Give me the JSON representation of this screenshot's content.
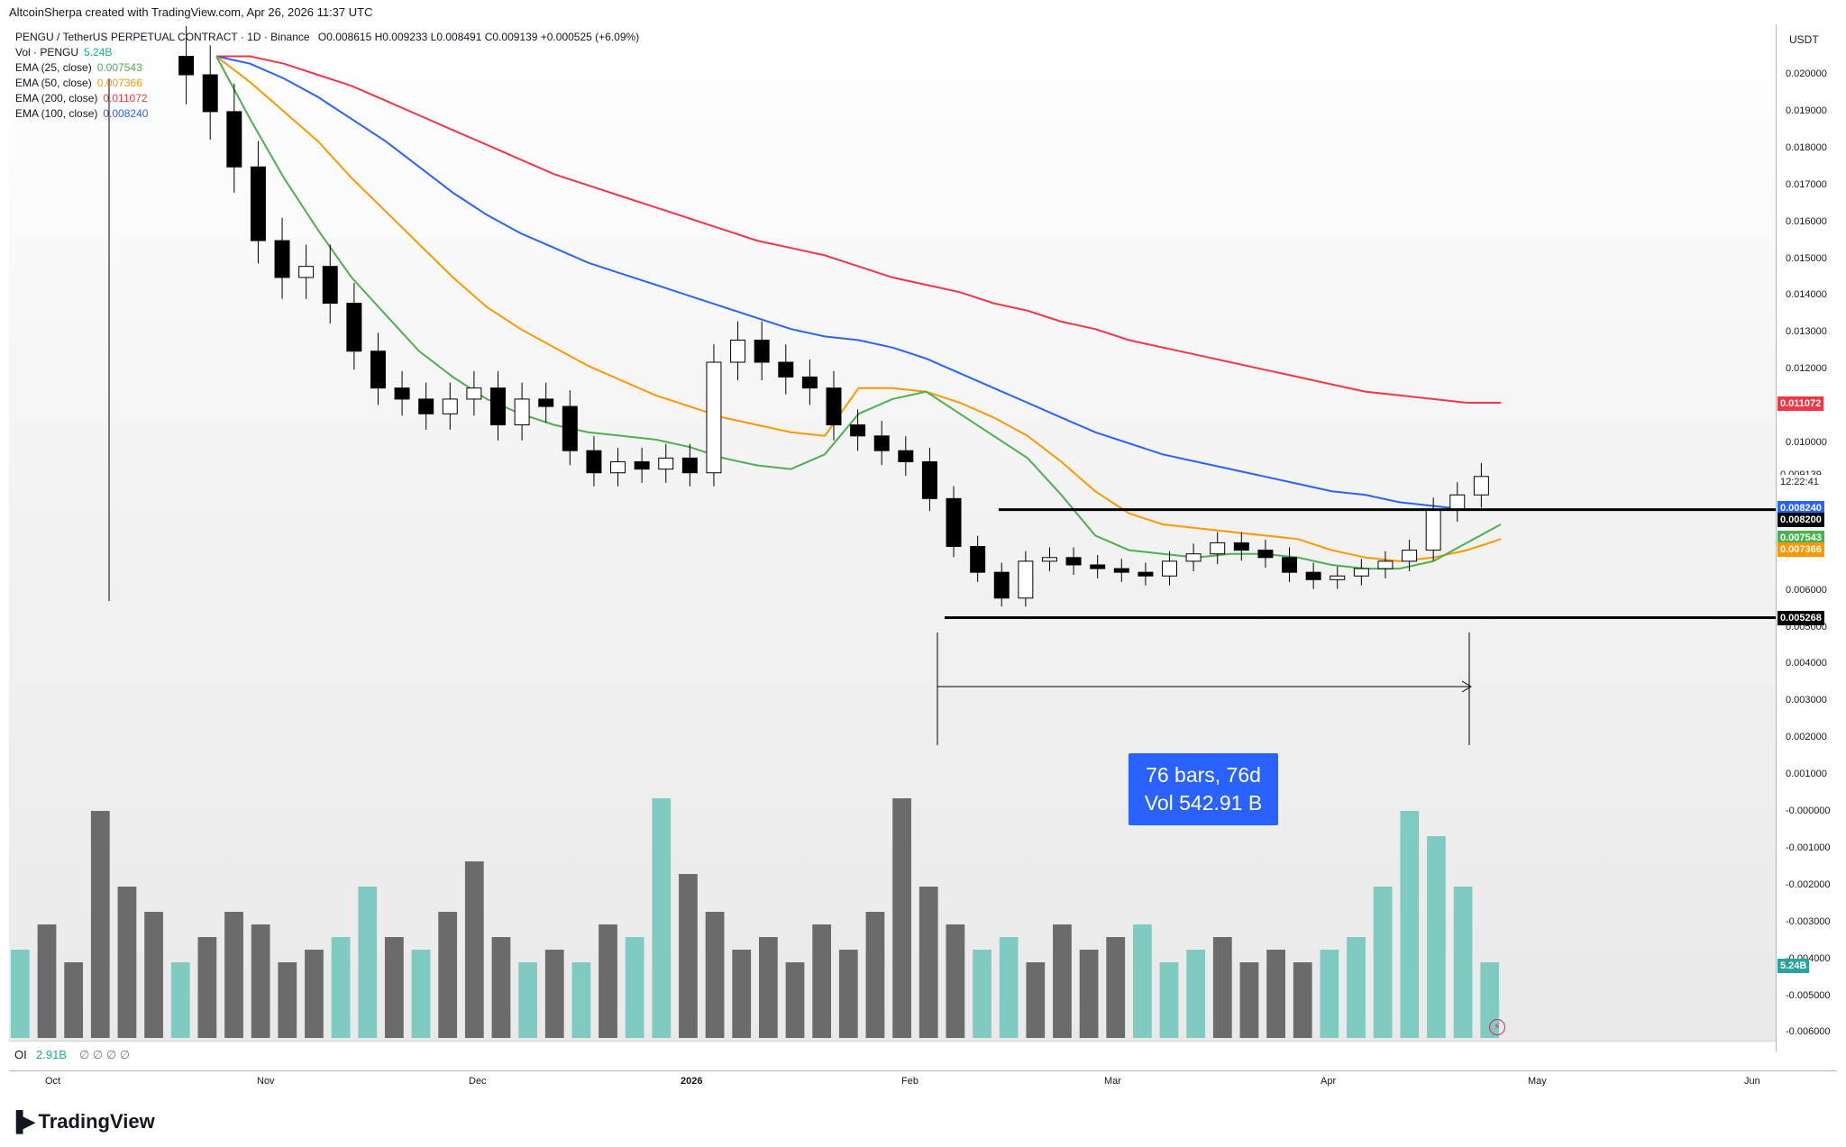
{
  "header": {
    "text": "AltcoinSherpa created with TradingView.com, Apr 26, 2026 11:37 UTC"
  },
  "legend": {
    "title": "PENGU / TetherUS PERPETUAL CONTRACT · 1D · Binance",
    "ohlc": "O0.008615  H0.009233  L0.008491  C0.009139  +0.000525 (+6.09%)",
    "rows": [
      {
        "label": "Vol · PENGU",
        "value": "5.24B",
        "color": "#26a69a"
      },
      {
        "label": "EMA (25, close)",
        "value": "0.007543",
        "color": "#4caf50"
      },
      {
        "label": "EMA (50, close)",
        "value": "0.007366",
        "color": "#ff9800"
      },
      {
        "label": "EMA (200, close)",
        "value": "0.011072",
        "color": "#f23645"
      },
      {
        "label": "EMA (100, close)",
        "value": "0.008240",
        "color": "#2962ff"
      }
    ]
  },
  "price_axis": {
    "unit": "USDT",
    "ticks": [
      "0.020000",
      "0.019000",
      "0.018000",
      "0.017000",
      "0.016000",
      "0.015000",
      "0.014000",
      "0.013000",
      "0.012000",
      "0.010000",
      "0.006000",
      "0.005000",
      "0.004000",
      "0.003000",
      "0.002000",
      "0.001000",
      "-0.000000",
      "-0.001000",
      "-0.002000",
      "-0.003000",
      "-0.004000",
      "-0.005000",
      "-0.006000"
    ],
    "badges": [
      {
        "text": "0.011072",
        "color": "#f23645"
      },
      {
        "text": "0.009139",
        "color": "#ffffff"
      },
      {
        "text": "12:22:41",
        "color": "#ffffff"
      },
      {
        "text": "0.008240",
        "color": "#2962ff"
      },
      {
        "text": "0.008200",
        "color": "#000000"
      },
      {
        "text": "0.007543",
        "color": "#4caf50"
      },
      {
        "text": "0.007366",
        "color": "#ff9800"
      },
      {
        "text": "0.005268",
        "color": "#000000"
      },
      {
        "text": "5.24B",
        "color": "#26a69a"
      }
    ]
  },
  "time_axis": {
    "labels": [
      "Oct",
      "Nov",
      "Dec",
      "2026",
      "Feb",
      "Mar",
      "Apr",
      "May",
      "Jun"
    ]
  },
  "oi": {
    "label": "OI",
    "value": "2.91B",
    "rest": "∅ ∅ ∅ ∅"
  },
  "measure": {
    "line1": "76 bars, 76d",
    "line2": "Vol 542.91 B"
  },
  "brand": {
    "name": "TradingView"
  },
  "chart_data": {
    "type": "candlestick",
    "symbol": "PENGU / TetherUS PERPETUAL CONTRACT",
    "timeframe": "1D",
    "x_range": [
      "Oct",
      "Jun"
    ],
    "y_unit": "USDT",
    "ylim": [
      -0.006,
      0.0205
    ],
    "horizontal_levels": [
      0.0082,
      0.005268
    ],
    "ema": {
      "ema25": [
        0.0205,
        0.0188,
        0.0172,
        0.0158,
        0.0145,
        0.0135,
        0.0125,
        0.0118,
        0.0112,
        0.0108,
        0.0105,
        0.0103,
        0.0102,
        0.0101,
        0.0099,
        0.0096,
        0.0094,
        0.0093,
        0.0097,
        0.0108,
        0.0112,
        0.0114,
        0.0108,
        0.0102,
        0.0096,
        0.0086,
        0.0075,
        0.0071,
        0.007,
        0.0069,
        0.007,
        0.007,
        0.0069,
        0.0067,
        0.0066,
        0.0066,
        0.0068,
        0.0073,
        0.0078
      ],
      "ema50": [
        0.0205,
        0.0198,
        0.019,
        0.0182,
        0.0172,
        0.0163,
        0.0154,
        0.0145,
        0.0137,
        0.0131,
        0.0126,
        0.0121,
        0.0117,
        0.0113,
        0.011,
        0.0107,
        0.0105,
        0.0103,
        0.0102,
        0.0115,
        0.0115,
        0.0114,
        0.0111,
        0.0107,
        0.0102,
        0.0095,
        0.0087,
        0.0081,
        0.0078,
        0.0077,
        0.0076,
        0.0075,
        0.0074,
        0.0071,
        0.0069,
        0.0068,
        0.0069,
        0.0071,
        0.0074
      ],
      "ema100": [
        0.0205,
        0.0203,
        0.0199,
        0.0194,
        0.0188,
        0.0182,
        0.0175,
        0.0168,
        0.0162,
        0.0157,
        0.0153,
        0.0149,
        0.0146,
        0.0143,
        0.014,
        0.0137,
        0.0134,
        0.0131,
        0.0129,
        0.0128,
        0.0126,
        0.0123,
        0.0119,
        0.0115,
        0.0111,
        0.0107,
        0.0103,
        0.01,
        0.0097,
        0.0095,
        0.0093,
        0.0091,
        0.0089,
        0.0087,
        0.0086,
        0.0084,
        0.0083,
        0.0082,
        0.0082
      ],
      "ema200": [
        0.0205,
        0.0205,
        0.0203,
        0.02,
        0.0197,
        0.0193,
        0.0189,
        0.0185,
        0.0181,
        0.0177,
        0.0173,
        0.017,
        0.0167,
        0.0164,
        0.0161,
        0.0158,
        0.0155,
        0.0153,
        0.0151,
        0.0148,
        0.0145,
        0.0143,
        0.0141,
        0.0138,
        0.0136,
        0.0133,
        0.0131,
        0.0128,
        0.0126,
        0.0124,
        0.0122,
        0.012,
        0.0118,
        0.0116,
        0.0114,
        0.0113,
        0.0112,
        0.0111,
        0.0111
      ]
    },
    "close": [
      0.0205,
      0.02,
      0.019,
      0.0175,
      0.0155,
      0.0145,
      0.0148,
      0.0138,
      0.0125,
      0.0115,
      0.0112,
      0.0108,
      0.0112,
      0.0115,
      0.0105,
      0.0112,
      0.011,
      0.0098,
      0.0092,
      0.0095,
      0.0093,
      0.0096,
      0.0092,
      0.0122,
      0.0128,
      0.0122,
      0.0118,
      0.0115,
      0.0105,
      0.0102,
      0.0098,
      0.0095,
      0.0085,
      0.0072,
      0.0065,
      0.0058,
      0.0068,
      0.0069,
      0.0067,
      0.0066,
      0.0065,
      0.0064,
      0.0068,
      0.007,
      0.0073,
      0.0071,
      0.0069,
      0.0065,
      0.0063,
      0.0064,
      0.0066,
      0.0068,
      0.0071,
      0.0082,
      0.0086,
      0.0091
    ],
    "volume_relative": [
      0.35,
      0.45,
      0.3,
      0.9,
      0.6,
      0.5,
      0.3,
      0.4,
      0.5,
      0.45,
      0.3,
      0.35,
      0.4,
      0.6,
      0.4,
      0.35,
      0.5,
      0.7,
      0.4,
      0.3,
      0.35,
      0.3,
      0.45,
      0.4,
      0.95,
      0.65,
      0.5,
      0.35,
      0.4,
      0.3,
      0.45,
      0.35,
      0.5,
      0.95,
      0.6,
      0.45,
      0.35,
      0.4,
      0.3,
      0.45,
      0.35,
      0.4,
      0.45,
      0.3,
      0.35,
      0.4,
      0.3,
      0.35,
      0.3,
      0.35,
      0.4,
      0.6,
      0.9,
      0.8,
      0.6,
      0.3
    ]
  }
}
